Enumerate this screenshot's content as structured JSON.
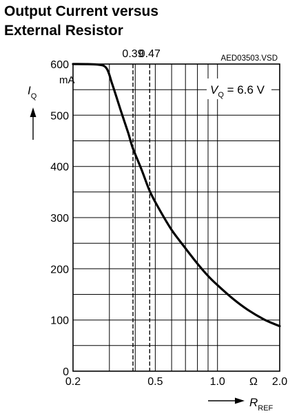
{
  "title_lines": [
    "Output Current versus",
    "External Resistor"
  ],
  "figure_ref": "AED03503.VSD",
  "chart_data": {
    "type": "line",
    "title": "Output Current versus External Resistor",
    "x_scale": "log",
    "xlim": [
      0.2,
      2.0
    ],
    "ylim": [
      0,
      600
    ],
    "x_tick_labels": [
      "0.2",
      "0.5",
      "1.0",
      "2.0"
    ],
    "x_tick_values": [
      0.2,
      0.5,
      1.0,
      2.0
    ],
    "x_unit": "Ω",
    "x_grid_values": [
      0.3,
      0.4,
      0.5,
      0.6,
      0.7,
      0.8,
      0.9,
      1.0,
      2.0
    ],
    "y_tick_labels": [
      "0",
      "100",
      "200",
      "300",
      "400",
      "500",
      "600"
    ],
    "y_tick_values": [
      0,
      100,
      200,
      300,
      400,
      500,
      600
    ],
    "y_minor_grid": [
      50,
      150,
      250,
      350,
      450,
      550
    ],
    "y_unit": "mA",
    "ylabel_main": "I",
    "ylabel_sub": "Q",
    "xlabel_main": "R",
    "xlabel_sub": "REF",
    "annotation": {
      "main": "V",
      "sub": "Q",
      "text": " = 6.6 V"
    },
    "markers": [
      {
        "x": 0.39,
        "label": "0.39"
      },
      {
        "x": 0.47,
        "label": "0.47"
      }
    ],
    "series": [
      {
        "x": [
          0.2,
          0.26,
          0.29,
          0.31,
          0.34,
          0.37,
          0.39,
          0.43,
          0.47,
          0.52,
          0.6,
          0.7,
          0.8,
          0.9,
          1.0,
          1.2,
          1.4,
          1.7,
          2.0
        ],
        "y": [
          600,
          599,
          592,
          560,
          510,
          465,
          435,
          393,
          352,
          318,
          276,
          240,
          210,
          186,
          168,
          140,
          120,
          100,
          88
        ]
      }
    ]
  }
}
